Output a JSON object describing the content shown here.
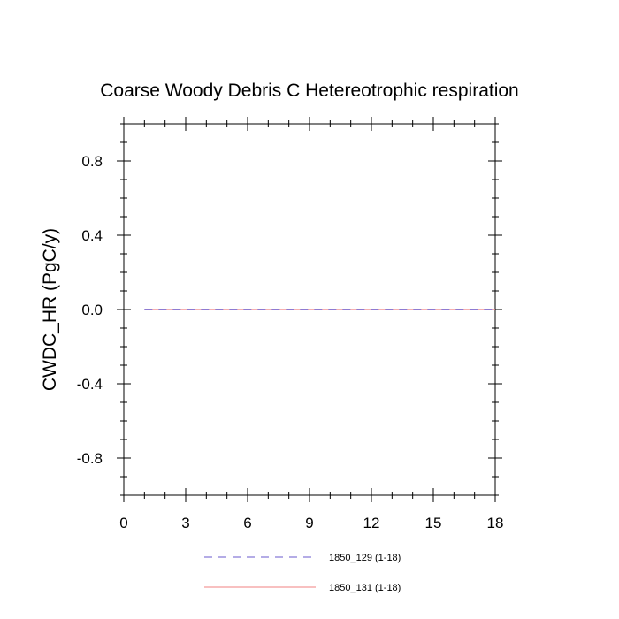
{
  "chart_data": {
    "type": "line",
    "title": "Coarse Woody Debris C Hetereotrophic respiration",
    "xlabel": "",
    "ylabel": "CWDC_HR  (PgC/y)",
    "xlim": [
      0,
      18
    ],
    "ylim": [
      -1,
      1
    ],
    "xticks": [
      0,
      3,
      6,
      9,
      12,
      15,
      18
    ],
    "xtick_labels": [
      "0",
      "3",
      "6",
      "9",
      "12",
      "15",
      "18"
    ],
    "yticks": [
      -0.8,
      -0.4,
      0.0,
      0.4,
      0.8
    ],
    "ytick_labels": [
      "-0.8",
      "-0.4",
      "0.0",
      "0.4",
      "0.8"
    ],
    "grid": false,
    "legend_position": "bottom",
    "series": [
      {
        "name": "1850_129 (1-18)",
        "color": "#6a5acd",
        "style": "dashed",
        "x": [
          1,
          2,
          3,
          4,
          5,
          6,
          7,
          8,
          9,
          10,
          11,
          12,
          13,
          14,
          15,
          16,
          17,
          18
        ],
        "y": [
          0,
          0,
          0,
          0,
          0,
          0,
          0,
          0,
          0,
          0,
          0,
          0,
          0,
          0,
          0,
          0,
          0,
          0
        ]
      },
      {
        "name": "1850_131 (1-18)",
        "color": "#f08080",
        "style": "solid",
        "x": [
          1,
          2,
          3,
          4,
          5,
          6,
          7,
          8,
          9,
          10,
          11,
          12,
          13,
          14,
          15,
          16,
          17,
          18
        ],
        "y": [
          0,
          0,
          0,
          0,
          0,
          0,
          0,
          0,
          0,
          0,
          0,
          0,
          0,
          0,
          0,
          0,
          0,
          0
        ]
      }
    ]
  }
}
